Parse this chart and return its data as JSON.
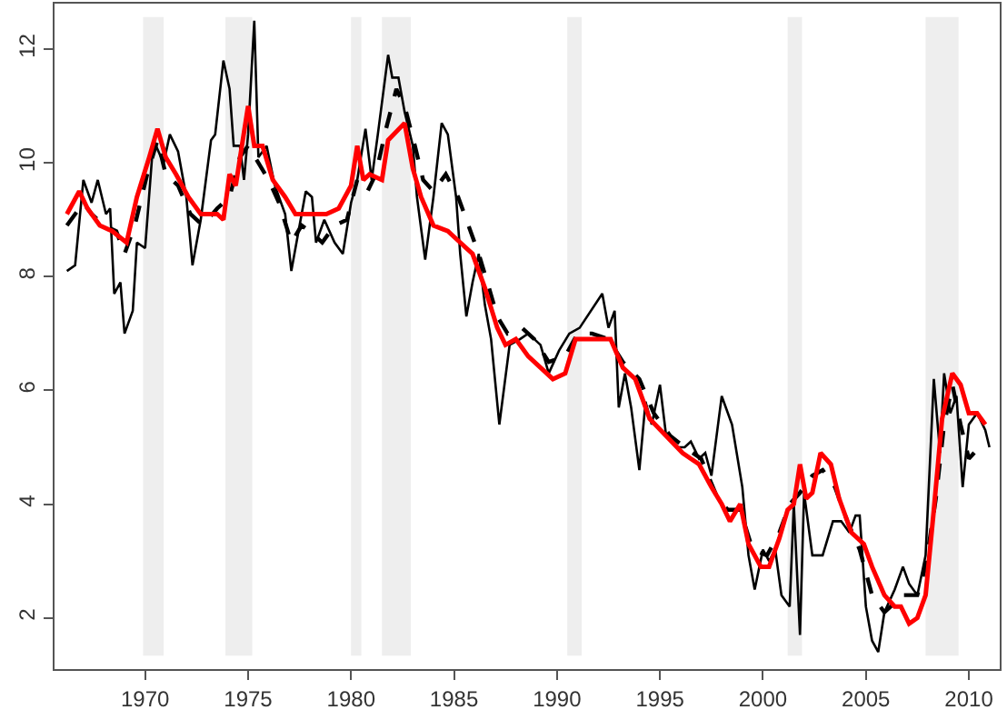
{
  "chart_data": {
    "type": "line",
    "xlim": [
      1965.6,
      2011.5
    ],
    "ylim": [
      1.1,
      12.8
    ],
    "xticks": [
      1970,
      1975,
      1980,
      1985,
      1990,
      1995,
      2000,
      2005,
      2010
    ],
    "yticks": [
      2,
      4,
      6,
      8,
      10,
      12
    ],
    "grid": false,
    "marker": "none",
    "bands": [
      {
        "axis": "x",
        "from": 1969.9,
        "to": 1970.9,
        "color": "#eeeeee"
      },
      {
        "axis": "x",
        "from": 1973.9,
        "to": 1975.2,
        "color": "#eeeeee"
      },
      {
        "axis": "x",
        "from": 1980.0,
        "to": 1980.5,
        "color": "#eeeeee"
      },
      {
        "axis": "x",
        "from": 1981.5,
        "to": 1982.9,
        "color": "#eeeeee"
      },
      {
        "axis": "x",
        "from": 1990.5,
        "to": 1991.2,
        "color": "#eeeeee"
      },
      {
        "axis": "x",
        "from": 2001.2,
        "to": 2001.9,
        "color": "#eeeeee"
      },
      {
        "axis": "x",
        "from": 2007.9,
        "to": 2009.5,
        "color": "#eeeeee"
      }
    ],
    "series": [
      {
        "color": "#000000",
        "line_style": "solid",
        "x": [
          1966.2,
          1966.6,
          1967.0,
          1967.4,
          1967.7,
          1968.1,
          1968.3,
          1968.5,
          1968.8,
          1969.0,
          1969.4,
          1969.6,
          1970.0,
          1970.4,
          1970.9,
          1971.2,
          1971.6,
          1972.0,
          1972.3,
          1972.7,
          1973.2,
          1973.4,
          1973.8,
          1974.1,
          1974.3,
          1974.6,
          1974.8,
          1975.0,
          1975.3,
          1975.5,
          1975.9,
          1976.3,
          1976.8,
          1977.1,
          1977.4,
          1977.8,
          1978.1,
          1978.3,
          1978.7,
          1979.2,
          1979.6,
          1980.0,
          1980.3,
          1980.7,
          1981.0,
          1981.3,
          1981.8,
          1982.0,
          1982.3,
          1982.6,
          1983.0,
          1983.2,
          1983.6,
          1984.0,
          1984.4,
          1984.7,
          1985.1,
          1985.3,
          1985.6,
          1985.9,
          1986.2,
          1986.5,
          1986.8,
          1987.2,
          1987.7,
          1988.2,
          1988.6,
          1989.2,
          1989.6,
          1990.1,
          1990.6,
          1991.1,
          1992.2,
          1992.5,
          1992.8,
          1993.0,
          1993.3,
          1993.6,
          1994.0,
          1994.3,
          1994.6,
          1995.0,
          1995.3,
          1995.8,
          1996.2,
          1996.5,
          1996.9,
          1997.2,
          1997.5,
          1998.0,
          1998.5,
          1999.0,
          1999.3,
          1999.6,
          2000.0,
          2000.3,
          2000.6,
          2000.9,
          2001.3,
          2001.5,
          2001.8,
          2002.0,
          2002.4,
          2002.9,
          2003.4,
          2003.8,
          2004.2,
          2004.5,
          2004.7,
          2005.0,
          2005.3,
          2005.6,
          2005.9,
          2006.4,
          2006.8,
          2007.1,
          2007.5,
          2007.9,
          2008.3,
          2008.6,
          2008.8,
          2009.1,
          2009.4,
          2009.7,
          2010.0,
          2010.4,
          2010.8,
          2011.0
        ],
        "values": [
          8.1,
          8.2,
          9.7,
          9.3,
          9.7,
          9.1,
          9.2,
          7.7,
          7.9,
          7.0,
          7.4,
          8.6,
          8.5,
          10.4,
          10.0,
          10.5,
          10.2,
          9.4,
          8.2,
          9.0,
          10.4,
          10.5,
          11.8,
          11.3,
          10.3,
          10.3,
          9.7,
          10.5,
          12.5,
          10.1,
          10.3,
          9.6,
          9.1,
          8.1,
          8.7,
          9.5,
          9.4,
          8.6,
          9.0,
          8.6,
          8.4,
          9.3,
          9.7,
          10.6,
          9.7,
          10.5,
          11.9,
          11.5,
          11.5,
          10.9,
          10.3,
          9.4,
          8.3,
          9.4,
          10.7,
          10.5,
          9.4,
          8.4,
          7.3,
          7.9,
          8.4,
          7.5,
          6.9,
          5.4,
          6.8,
          6.9,
          7.0,
          6.8,
          6.3,
          6.7,
          7.0,
          7.1,
          7.7,
          7.1,
          7.4,
          5.7,
          6.3,
          5.7,
          4.6,
          5.8,
          5.4,
          6.1,
          5.2,
          5.0,
          5.0,
          5.1,
          4.8,
          4.9,
          4.5,
          5.9,
          5.4,
          4.3,
          3.1,
          2.5,
          3.2,
          3.0,
          3.2,
          2.4,
          2.2,
          4.0,
          1.7,
          4.2,
          3.1,
          3.1,
          3.7,
          3.7,
          3.5,
          3.8,
          3.8,
          2.2,
          1.6,
          1.4,
          2.1,
          2.5,
          2.9,
          2.6,
          2.4,
          3.1,
          6.2,
          4.9,
          6.3,
          5.6,
          5.9,
          4.3,
          5.4,
          5.6,
          5.3,
          5.0
        ]
      },
      {
        "color": "#000000",
        "line_style": "dashed",
        "x": [
          1966.2,
          1967.0,
          1967.4,
          1968.0,
          1968.6,
          1969.0,
          1969.5,
          1970.1,
          1970.6,
          1971.0,
          1971.6,
          1972.2,
          1972.8,
          1973.5,
          1974.1,
          1974.6,
          1975.0,
          1975.5,
          1976.0,
          1976.5,
          1977.1,
          1977.6,
          1978.0,
          1978.6,
          1979.2,
          1979.8,
          1980.3,
          1980.8,
          1981.2,
          1981.7,
          1982.2,
          1982.6,
          1983.1,
          1983.5,
          1984.0,
          1984.6,
          1985.2,
          1985.7,
          1986.2,
          1986.7,
          1987.1,
          1987.6,
          1988.3,
          1988.9,
          1989.6,
          1990.4,
          1991.0,
          1991.7,
          1992.5,
          1993.2,
          1994.0,
          1994.7,
          1995.5,
          1996.2,
          1997.0,
          1997.8,
          1998.3,
          1998.9,
          1999.5,
          2000.2,
          2000.8,
          2001.3,
          2001.8,
          2002.4,
          2002.9,
          2003.5,
          2004.1,
          2004.7,
          2005.3,
          2005.9,
          2006.8,
          2007.5,
          2007.9,
          2008.4,
          2008.8,
          2009.2,
          2009.6,
          2010.0,
          2010.5,
          2010.8
        ],
        "values": [
          8.9,
          9.3,
          9.1,
          8.9,
          8.8,
          8.4,
          8.9,
          9.8,
          10.4,
          9.8,
          9.6,
          9.1,
          8.9,
          9.2,
          9.4,
          10.1,
          10.3,
          10.0,
          9.7,
          9.3,
          8.6,
          8.9,
          8.8,
          8.6,
          8.9,
          9.0,
          9.7,
          9.5,
          9.8,
          10.6,
          11.3,
          11.0,
          10.3,
          9.7,
          9.5,
          9.8,
          9.4,
          8.9,
          8.4,
          7.8,
          7.3,
          7.0,
          7.1,
          6.9,
          6.5,
          6.6,
          7.0,
          7.0,
          6.9,
          6.5,
          6.2,
          5.6,
          5.2,
          5.0,
          4.8,
          4.1,
          3.9,
          3.9,
          3.2,
          3.1,
          3.5,
          4.0,
          4.2,
          4.5,
          4.6,
          4.3,
          3.7,
          3.2,
          2.4,
          2.1,
          2.4,
          2.4,
          2.9,
          4.1,
          5.4,
          6.1,
          5.4,
          4.8,
          5.0,
          5.0
        ]
      },
      {
        "color": "#ff0000",
        "line_style": "solid",
        "x": [
          1966.2,
          1966.8,
          1967.2,
          1967.8,
          1968.4,
          1969.1,
          1969.6,
          1970.2,
          1970.6,
          1971.0,
          1971.5,
          1972.1,
          1972.7,
          1973.5,
          1973.8,
          1974.1,
          1974.4,
          1975.0,
          1975.3,
          1975.7,
          1976.2,
          1976.8,
          1977.3,
          1977.9,
          1978.8,
          1979.4,
          1980.0,
          1980.3,
          1980.6,
          1980.9,
          1981.5,
          1981.8,
          1982.6,
          1983.0,
          1983.4,
          1984.0,
          1984.7,
          1985.3,
          1985.9,
          1986.5,
          1987.1,
          1987.5,
          1988.0,
          1988.6,
          1989.2,
          1989.8,
          1990.4,
          1990.9,
          1991.5,
          1992.0,
          1992.6,
          1993.2,
          1993.8,
          1994.5,
          1995.3,
          1996.1,
          1996.9,
          1997.5,
          1998.0,
          1998.4,
          1998.9,
          1999.3,
          1999.9,
          2000.3,
          2000.8,
          2001.2,
          2001.5,
          2001.8,
          2002.1,
          2002.4,
          2002.8,
          2003.3,
          2003.7,
          2004.3,
          2004.9,
          2005.3,
          2005.9,
          2006.4,
          2006.7,
          2007.1,
          2007.5,
          2007.9,
          2008.3,
          2008.7,
          2009.2,
          2009.6,
          2010.0,
          2010.4,
          2010.8
        ],
        "values": [
          9.1,
          9.5,
          9.2,
          8.9,
          8.8,
          8.6,
          9.4,
          10.1,
          10.6,
          10.1,
          9.8,
          9.4,
          9.1,
          9.1,
          9.0,
          9.8,
          9.6,
          11.0,
          10.3,
          10.3,
          9.7,
          9.4,
          9.1,
          9.1,
          9.1,
          9.2,
          9.6,
          10.3,
          9.7,
          9.8,
          9.7,
          10.4,
          10.7,
          9.9,
          9.4,
          8.9,
          8.8,
          8.6,
          8.4,
          7.8,
          7.1,
          6.8,
          6.9,
          6.6,
          6.4,
          6.2,
          6.3,
          6.9,
          6.9,
          6.9,
          6.9,
          6.4,
          6.2,
          5.5,
          5.2,
          4.9,
          4.7,
          4.3,
          4.0,
          3.7,
          4.0,
          3.3,
          2.9,
          2.9,
          3.4,
          3.9,
          4.0,
          4.7,
          4.1,
          4.2,
          4.9,
          4.7,
          4.1,
          3.5,
          3.3,
          2.9,
          2.4,
          2.2,
          2.2,
          1.9,
          2.0,
          2.4,
          3.9,
          5.5,
          6.3,
          6.1,
          5.6,
          5.6,
          5.4
        ]
      }
    ]
  }
}
